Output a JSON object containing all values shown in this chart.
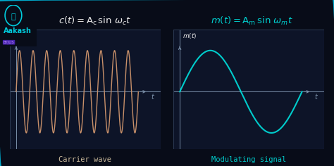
{
  "bg_color": "#080c18",
  "panel_bg": "#0d1428",
  "panel_border": "#2a3850",
  "carrier_color": "#c8906a",
  "mod_color": "#00cccc",
  "axis_color": "#7a8fa8",
  "text_color": "#e8e8e8",
  "cyan_color": "#00cccc",
  "caption_color_left": "#c8b89a",
  "caption_color_right": "#00cccc",
  "border_color": "#00aacc",
  "logo_color": "#00ccdd",
  "logo_text": "Aakash",
  "byjus_bg": "#5522aa",
  "byjus_color": "#cc88ff",
  "caption_left": "Carrier wave",
  "caption_right": "Modulating signal"
}
